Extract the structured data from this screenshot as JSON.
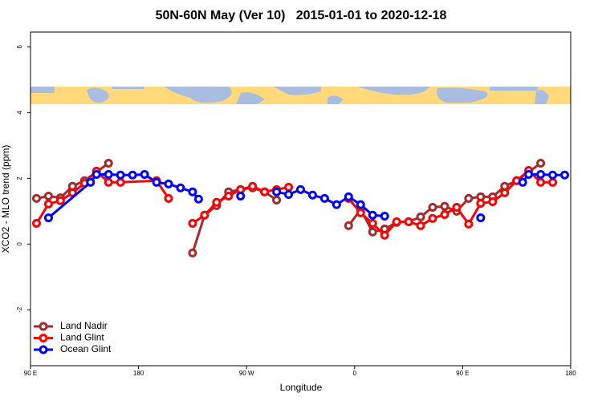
{
  "chart_data": {
    "type": "line",
    "title": "50N-60N May (Ver 10)   2015-01-01 to 2020-12-18",
    "x_label": "Longitude",
    "y_label": "XCO2 - MLO trend (ppm)",
    "xlim": [
      90,
      540
    ],
    "ylim": [
      -3.7,
      6.45
    ],
    "xticks": [
      {
        "value": 90,
        "label": "90 E"
      },
      {
        "value": 180,
        "label": "180"
      },
      {
        "value": 270,
        "label": "90 W"
      },
      {
        "value": 360,
        "label": "0"
      },
      {
        "value": 450,
        "label": "90 E"
      },
      {
        "value": 540,
        "label": "180"
      }
    ],
    "yticks": [
      -2,
      0,
      2,
      4,
      6
    ],
    "legend_position": "bottom-left",
    "series": [
      {
        "name": "Land Nadir",
        "color": "#a52a2a",
        "x": [
          95,
          105,
          115,
          125,
          135,
          155,
          190,
          225,
          235,
          245,
          255,
          265,
          275,
          285,
          295,
          325,
          355,
          365,
          375,
          385,
          395,
          405,
          415,
          425,
          435,
          445,
          455,
          465,
          475,
          485,
          495,
          515
        ],
        "values": [
          1.39,
          1.46,
          1.41,
          1.76,
          1.93,
          2.46,
          null,
          -0.27,
          0.88,
          1.17,
          1.59,
          1.66,
          1.71,
          1.59,
          1.34,
          null,
          0.56,
          1.05,
          0.37,
          0.46,
          0.66,
          0.68,
          0.83,
          1.12,
          1.15,
          1.0,
          1.39,
          1.44,
          1.44,
          1.76,
          1.93,
          2.46
        ]
      },
      {
        "name": "Land Glint",
        "color": "#ff0000",
        "x": [
          95,
          105,
          115,
          125,
          135,
          145,
          155,
          165,
          195,
          205,
          215,
          225,
          235,
          245,
          255,
          265,
          275,
          285,
          295,
          305,
          330,
          355,
          365,
          375,
          385,
          395,
          405,
          415,
          425,
          435,
          445,
          455,
          465,
          475,
          485,
          495,
          505,
          515,
          525
        ],
        "values": [
          0.63,
          1.22,
          1.32,
          1.56,
          1.85,
          2.22,
          1.88,
          1.88,
          1.93,
          1.39,
          null,
          0.63,
          0.88,
          1.27,
          1.46,
          1.66,
          1.76,
          1.59,
          1.66,
          1.73,
          null,
          1.39,
          0.95,
          0.63,
          0.27,
          0.68,
          0.68,
          0.56,
          0.78,
          0.9,
          1.12,
          0.61,
          1.24,
          1.29,
          1.56,
          1.93,
          2.24,
          1.88,
          1.88
        ]
      },
      {
        "name": "Ocean Glint",
        "color": "#0000ff",
        "x": [
          105,
          140,
          145,
          155,
          165,
          175,
          185,
          195,
          205,
          215,
          225,
          230,
          250,
          265,
          280,
          295,
          305,
          315,
          325,
          335,
          345,
          355,
          365,
          375,
          385,
          420,
          465,
          480,
          500,
          505,
          515,
          525,
          535
        ],
        "values": [
          0.8,
          1.88,
          2.12,
          2.12,
          2.1,
          2.1,
          2.12,
          1.88,
          1.83,
          1.71,
          1.59,
          1.37,
          null,
          1.46,
          null,
          1.59,
          1.51,
          1.66,
          1.49,
          1.39,
          1.2,
          1.44,
          1.2,
          0.88,
          0.85,
          null,
          0.8,
          null,
          1.88,
          2.12,
          2.12,
          2.1,
          2.1
        ]
      }
    ]
  }
}
